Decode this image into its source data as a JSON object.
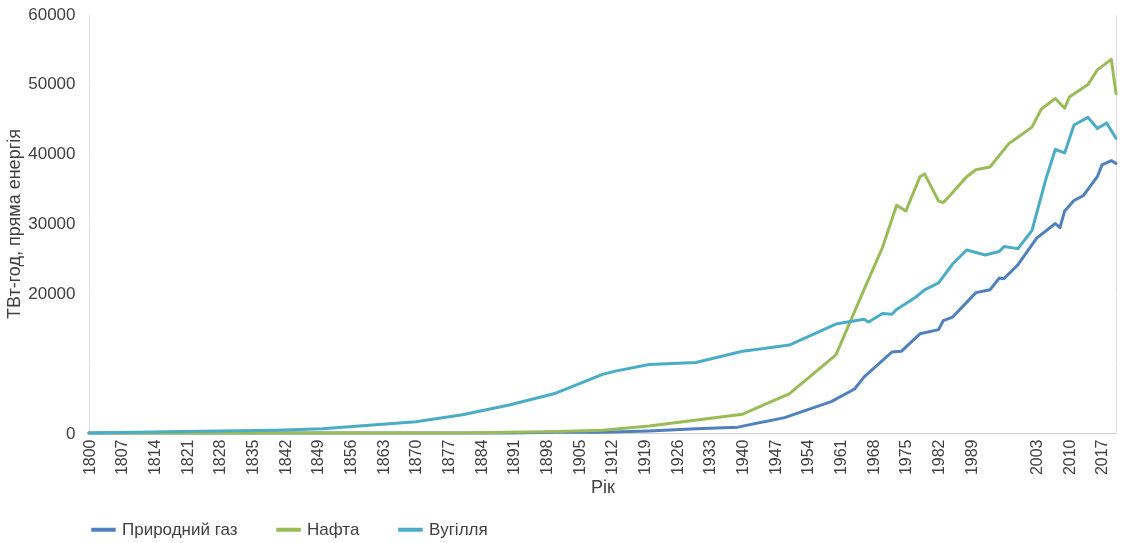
{
  "chart_data": {
    "type": "line",
    "xlabel": "Рік",
    "ylabel": "ТВт-год, пряма енергія",
    "xlim": [
      1800,
      2020
    ],
    "ylim": [
      0,
      60000
    ],
    "xticks": [
      1800,
      1807,
      1814,
      1821,
      1828,
      1835,
      1842,
      1849,
      1856,
      1863,
      1870,
      1877,
      1884,
      1891,
      1898,
      1905,
      1912,
      1919,
      1926,
      1933,
      1940,
      1947,
      1954,
      1961,
      1968,
      1975,
      1982,
      1989,
      2003,
      2010,
      2017
    ],
    "yticks": [
      0,
      {
        "value": 10000,
        "label": null
      },
      20000,
      30000,
      40000,
      50000,
      60000
    ],
    "grid": "y",
    "legend": "bottom",
    "line_style": "solid",
    "marker": "none",
    "series": [
      {
        "name": "Природний газ",
        "color": "#4f81bd",
        "x": [
          1800,
          1880,
          1890,
          1900,
          1910,
          1920,
          1930,
          1939,
          1949,
          1959,
          1964,
          1966,
          1970,
          1972,
          1974,
          1978,
          1982,
          1983,
          1985,
          1990,
          1993,
          1995,
          1996,
          1999,
          2003,
          2007,
          2008,
          2009,
          2011,
          2013,
          2016,
          2017,
          2019,
          2020
        ],
        "values": [
          0,
          0,
          0,
          100,
          100,
          300,
          600,
          840,
          2200,
          4500,
          6300,
          8000,
          10400,
          11600,
          11700,
          14200,
          14800,
          16100,
          16600,
          20100,
          20500,
          22200,
          22100,
          24100,
          27900,
          30000,
          29400,
          31800,
          33300,
          34000,
          36700,
          38400,
          39000,
          38600
        ]
      },
      {
        "name": "Нафта",
        "color": "#9bbb59",
        "x": [
          1800,
          1860,
          1870,
          1880,
          1890,
          1900,
          1910,
          1920,
          1940,
          1950,
          1960,
          1966,
          1970,
          1973,
          1975,
          1978,
          1979,
          1982,
          1983,
          1984,
          1988,
          1990,
          1993,
          1997,
          2002,
          2004,
          2007,
          2009,
          2010,
          2014,
          2016,
          2019,
          2020
        ],
        "values": [
          0,
          0,
          0,
          0,
          100,
          200,
          400,
          1000,
          2700,
          5600,
          11200,
          20500,
          26600,
          32600,
          31800,
          36700,
          37100,
          33200,
          33000,
          33700,
          36700,
          37700,
          38100,
          41400,
          43800,
          46400,
          47900,
          46500,
          48100,
          49900,
          52000,
          53500,
          48600
        ]
      },
      {
        "name": "Вугілля",
        "color": "#4bacc6",
        "x": [
          1800,
          1820,
          1840,
          1850,
          1860,
          1870,
          1880,
          1890,
          1900,
          1910,
          1913,
          1920,
          1930,
          1940,
          1950,
          1960,
          1966,
          1967,
          1970,
          1972,
          1973,
          1977,
          1979,
          1982,
          1985,
          1988,
          1992,
          1995,
          1996,
          1999,
          2002,
          2005,
          2007,
          2009,
          2011,
          2014,
          2016,
          2018,
          2020
        ],
        "values": [
          0,
          200,
          400,
          600,
          1100,
          1600,
          2600,
          4000,
          5700,
          8400,
          8900,
          9800,
          10100,
          11700,
          12600,
          15600,
          16300,
          15900,
          17100,
          17000,
          17700,
          19400,
          20500,
          21500,
          24200,
          26200,
          25500,
          26000,
          26700,
          26400,
          29000,
          36400,
          40600,
          40100,
          44100,
          45200,
          43600,
          44400,
          42200
        ]
      }
    ]
  }
}
